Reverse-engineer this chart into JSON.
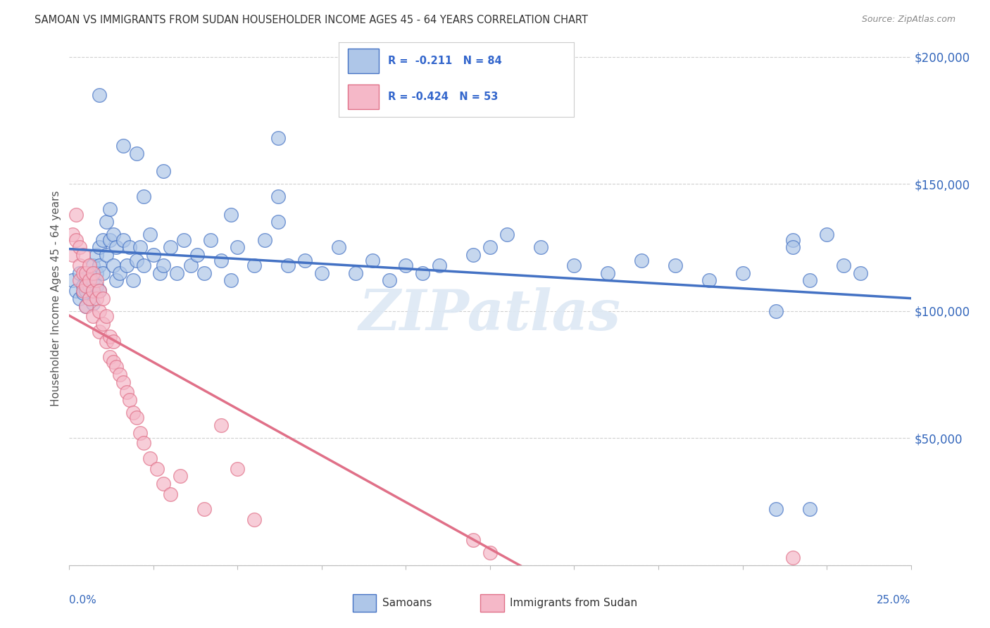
{
  "title": "SAMOAN VS IMMIGRANTS FROM SUDAN HOUSEHOLDER INCOME AGES 45 - 64 YEARS CORRELATION CHART",
  "source": "Source: ZipAtlas.com",
  "ylabel": "Householder Income Ages 45 - 64 years",
  "xlim": [
    0.0,
    0.25
  ],
  "ylim": [
    0,
    210000
  ],
  "color_samoan": "#aec6e8",
  "color_sudan": "#f5b8c8",
  "color_line_samoan": "#4472c4",
  "color_line_sudan": "#e07088",
  "background_color": "#ffffff",
  "grid_color": "#d0d0d0",
  "samoan_x": [
    0.001,
    0.002,
    0.003,
    0.003,
    0.004,
    0.004,
    0.005,
    0.005,
    0.005,
    0.006,
    0.006,
    0.006,
    0.007,
    0.007,
    0.007,
    0.007,
    0.008,
    0.008,
    0.008,
    0.009,
    0.009,
    0.009,
    0.01,
    0.01,
    0.011,
    0.011,
    0.012,
    0.012,
    0.013,
    0.013,
    0.014,
    0.014,
    0.015,
    0.016,
    0.017,
    0.018,
    0.019,
    0.02,
    0.021,
    0.022,
    0.024,
    0.025,
    0.027,
    0.028,
    0.03,
    0.032,
    0.034,
    0.036,
    0.038,
    0.04,
    0.042,
    0.045,
    0.048,
    0.05,
    0.055,
    0.058,
    0.062,
    0.065,
    0.07,
    0.075,
    0.08,
    0.085,
    0.09,
    0.095,
    0.1,
    0.105,
    0.11,
    0.12,
    0.125,
    0.13,
    0.14,
    0.15,
    0.16,
    0.17,
    0.18,
    0.19,
    0.2,
    0.21,
    0.215,
    0.22,
    0.225,
    0.23,
    0.235
  ],
  "samoan_y": [
    112000,
    108000,
    115000,
    105000,
    110000,
    107000,
    113000,
    108000,
    102000,
    115000,
    110000,
    105000,
    118000,
    112000,
    108000,
    103000,
    122000,
    115000,
    110000,
    125000,
    118000,
    108000,
    128000,
    115000,
    135000,
    122000,
    140000,
    128000,
    130000,
    118000,
    125000,
    112000,
    115000,
    128000,
    118000,
    125000,
    112000,
    120000,
    125000,
    118000,
    130000,
    122000,
    115000,
    118000,
    125000,
    115000,
    128000,
    118000,
    122000,
    115000,
    128000,
    120000,
    112000,
    125000,
    118000,
    128000,
    135000,
    118000,
    120000,
    115000,
    125000,
    115000,
    120000,
    112000,
    118000,
    115000,
    118000,
    122000,
    125000,
    130000,
    125000,
    118000,
    115000,
    120000,
    118000,
    112000,
    115000,
    100000,
    128000,
    112000,
    130000,
    118000,
    115000
  ],
  "samoan_y_outliers": [
    [
      0.009,
      185000
    ],
    [
      0.016,
      165000
    ],
    [
      0.02,
      162000
    ],
    [
      0.028,
      155000
    ],
    [
      0.048,
      138000
    ],
    [
      0.062,
      168000
    ],
    [
      0.062,
      145000
    ],
    [
      0.022,
      145000
    ],
    [
      0.21,
      22000
    ],
    [
      0.215,
      125000
    ],
    [
      0.22,
      22000
    ]
  ],
  "sudan_x": [
    0.001,
    0.001,
    0.002,
    0.002,
    0.003,
    0.003,
    0.003,
    0.004,
    0.004,
    0.004,
    0.005,
    0.005,
    0.005,
    0.006,
    0.006,
    0.006,
    0.007,
    0.007,
    0.007,
    0.008,
    0.008,
    0.009,
    0.009,
    0.009,
    0.01,
    0.01,
    0.011,
    0.011,
    0.012,
    0.012,
    0.013,
    0.013,
    0.014,
    0.015,
    0.016,
    0.017,
    0.018,
    0.019,
    0.02,
    0.021,
    0.022,
    0.024,
    0.026,
    0.028,
    0.03,
    0.033,
    0.04,
    0.045,
    0.05,
    0.055,
    0.12,
    0.125,
    0.215
  ],
  "sudan_y": [
    130000,
    122000,
    138000,
    128000,
    125000,
    118000,
    112000,
    122000,
    115000,
    108000,
    115000,
    110000,
    102000,
    118000,
    112000,
    105000,
    115000,
    108000,
    98000,
    112000,
    105000,
    108000,
    100000,
    92000,
    105000,
    95000,
    98000,
    88000,
    90000,
    82000,
    88000,
    80000,
    78000,
    75000,
    72000,
    68000,
    65000,
    60000,
    58000,
    52000,
    48000,
    42000,
    38000,
    32000,
    28000,
    35000,
    22000,
    55000,
    38000,
    18000,
    10000,
    5000,
    3000
  ]
}
